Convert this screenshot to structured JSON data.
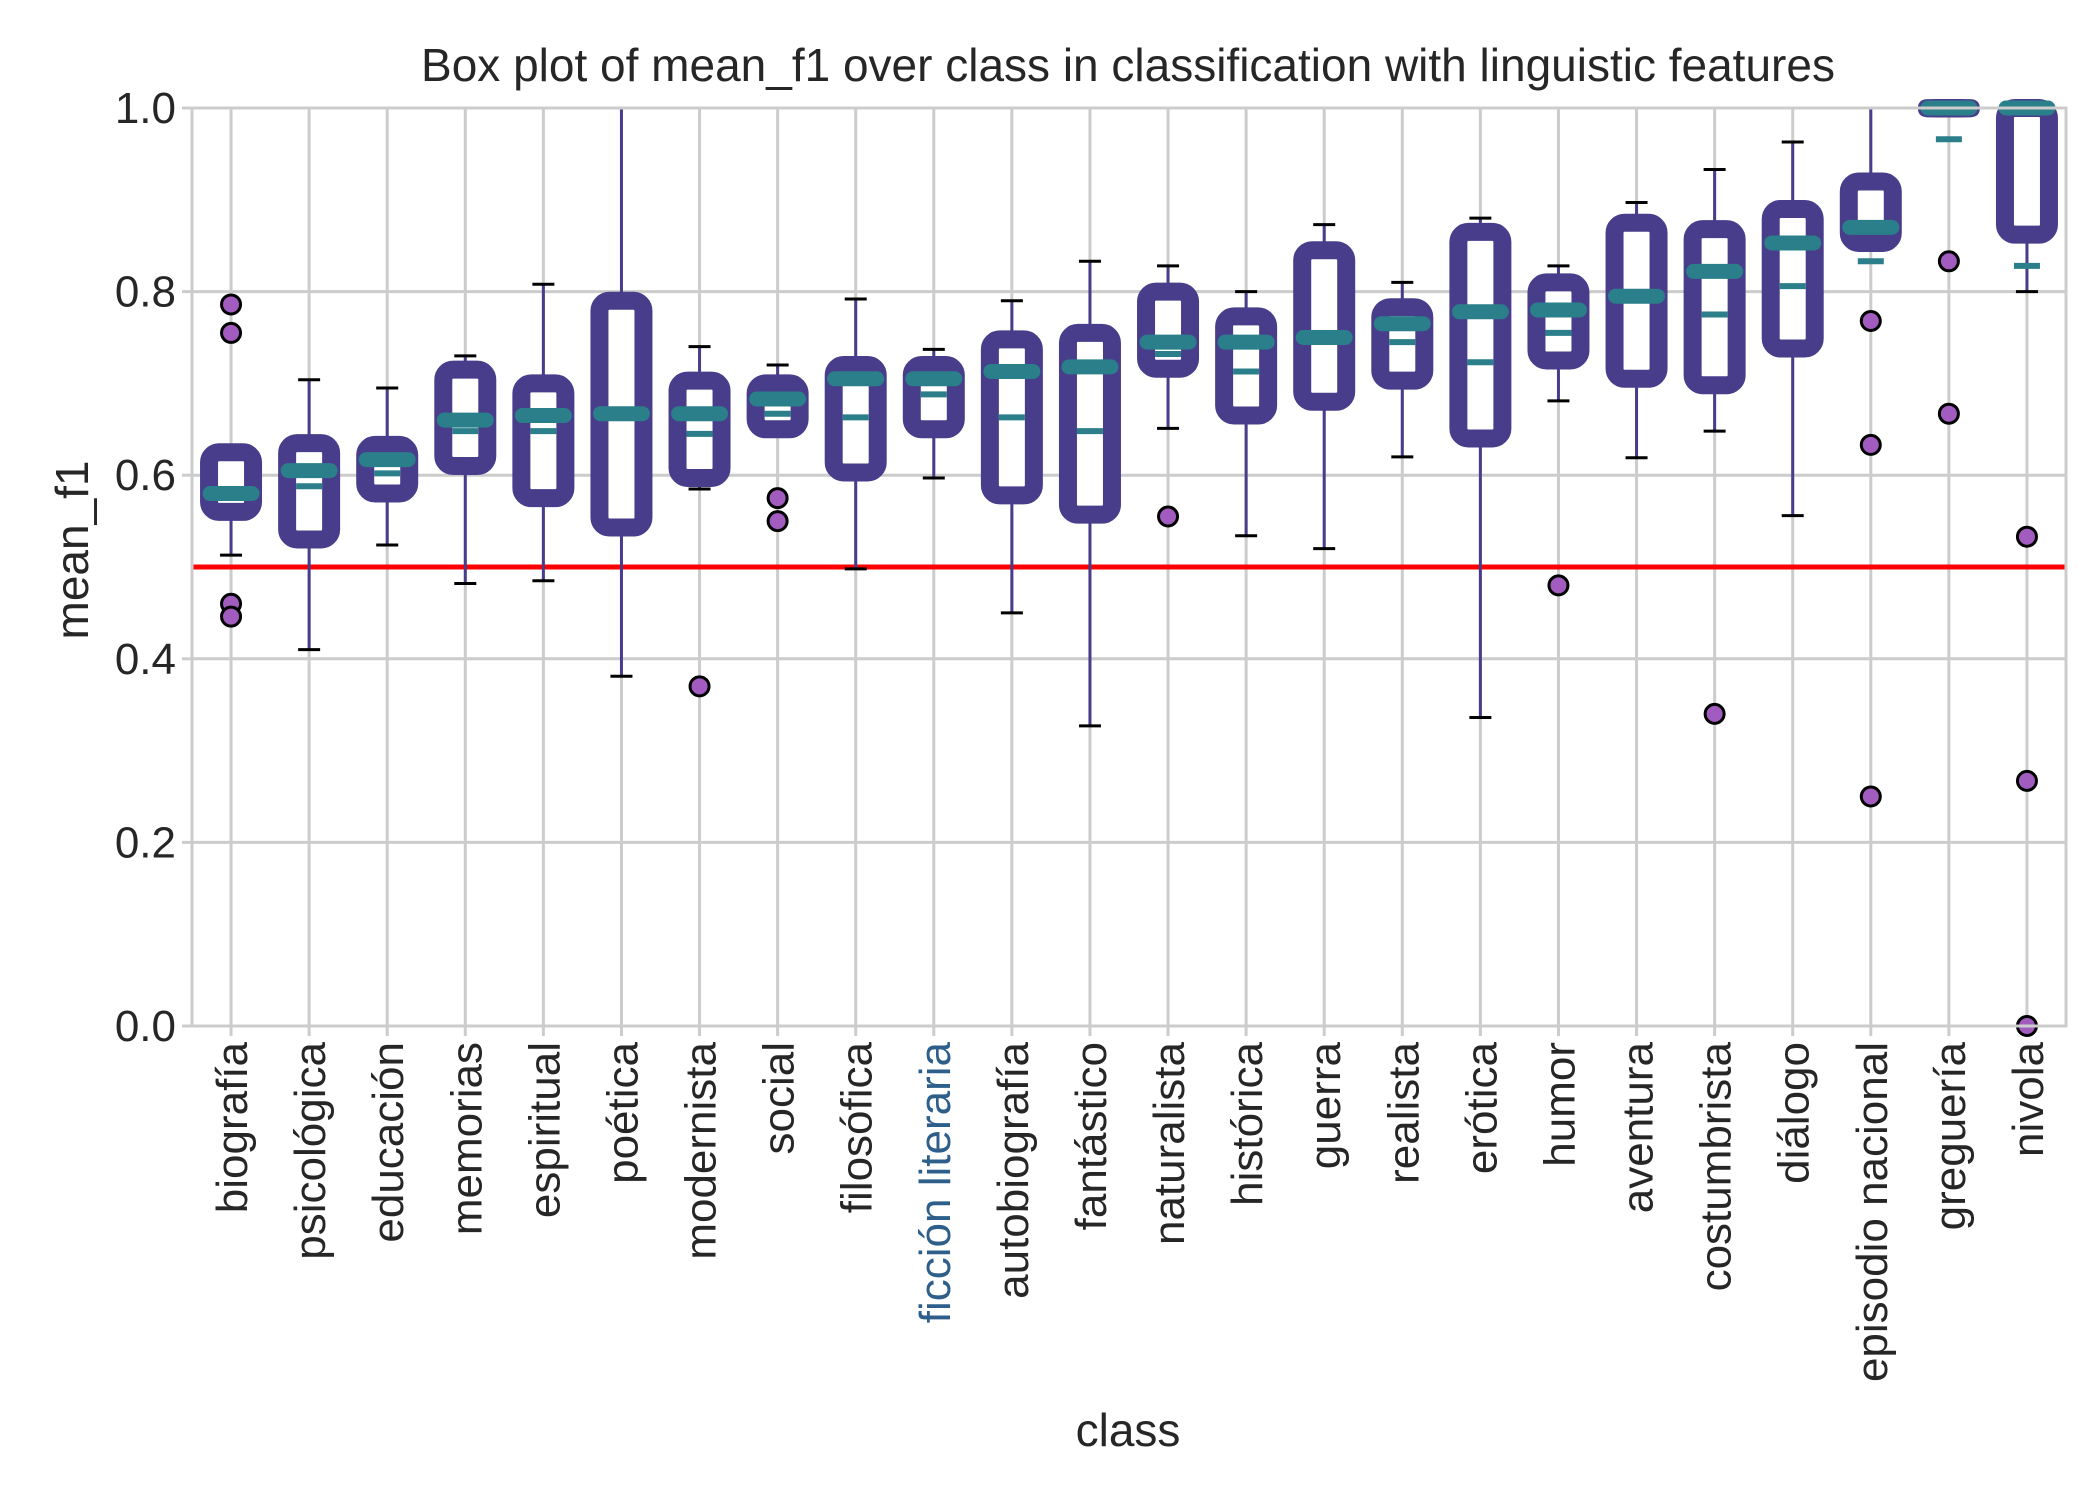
{
  "chart_data": {
    "type": "box",
    "title": "Box plot of mean_f1 over class in classification with linguistic features",
    "xlabel": "class",
    "ylabel": "mean_f1",
    "ylim": [
      0.0,
      1.0
    ],
    "yticks": [
      "0.0",
      "0.2",
      "0.4",
      "0.6",
      "0.8",
      "1.0"
    ],
    "grid": true,
    "reference_line": {
      "y": 0.5,
      "color": "#ff0000"
    },
    "colors": {
      "box": "#483d8b",
      "median": "#2a7f8a",
      "mean": "#2a7f8a",
      "whisker": "#483d8b",
      "cap": "#000000",
      "flier_face": "#a25bbf",
      "flier_edge": "#000000",
      "highlight_label": "#2e5f8a",
      "grid": "#cccccc"
    },
    "highlighted_category": "ficción literaria",
    "categories": [
      "biografía",
      "psicológica",
      "educación",
      "memorias",
      "espiritual",
      "poética",
      "modernista",
      "social",
      "filosófica",
      "ficción literaria",
      "autobiografía",
      "fantástico",
      "naturalista",
      "histórica",
      "guerra",
      "realista",
      "erótica",
      "humor",
      "aventura",
      "costumbrista",
      "diálogo",
      "episodio nacional",
      "greguería",
      "nivola"
    ],
    "boxes": [
      {
        "q1": 0.56,
        "median": 0.58,
        "q3": 0.625,
        "wlo": 0.513,
        "whi": 0.63,
        "mean": 0.585,
        "fliers": [
          0.786,
          0.755,
          0.46,
          0.446
        ]
      },
      {
        "q1": 0.53,
        "median": 0.605,
        "q3": 0.635,
        "wlo": 0.41,
        "whi": 0.704,
        "mean": 0.588,
        "fliers": []
      },
      {
        "q1": 0.58,
        "median": 0.617,
        "q3": 0.633,
        "wlo": 0.524,
        "whi": 0.695,
        "mean": 0.602,
        "fliers": []
      },
      {
        "q1": 0.61,
        "median": 0.66,
        "q3": 0.715,
        "wlo": 0.482,
        "whi": 0.73,
        "mean": 0.648,
        "fliers": []
      },
      {
        "q1": 0.575,
        "median": 0.665,
        "q3": 0.7,
        "wlo": 0.485,
        "whi": 0.808,
        "mean": 0.648,
        "fliers": []
      },
      {
        "q1": 0.543,
        "median": 0.667,
        "q3": 0.79,
        "wlo": 0.381,
        "whi": 1.0,
        "mean": 0.667,
        "fliers": []
      },
      {
        "q1": 0.597,
        "median": 0.667,
        "q3": 0.703,
        "wlo": 0.585,
        "whi": 0.74,
        "mean": 0.645,
        "fliers": [
          0.37
        ]
      },
      {
        "q1": 0.65,
        "median": 0.683,
        "q3": 0.7,
        "wlo": 0.648,
        "whi": 0.72,
        "mean": 0.667,
        "fliers": [
          0.575,
          0.55
        ]
      },
      {
        "q1": 0.603,
        "median": 0.705,
        "q3": 0.72,
        "wlo": 0.498,
        "whi": 0.792,
        "mean": 0.663,
        "fliers": []
      },
      {
        "q1": 0.65,
        "median": 0.705,
        "q3": 0.72,
        "wlo": 0.597,
        "whi": 0.737,
        "mean": 0.688,
        "fliers": []
      },
      {
        "q1": 0.578,
        "median": 0.713,
        "q3": 0.748,
        "wlo": 0.45,
        "whi": 0.79,
        "mean": 0.663,
        "fliers": []
      },
      {
        "q1": 0.557,
        "median": 0.718,
        "q3": 0.755,
        "wlo": 0.327,
        "whi": 0.833,
        "mean": 0.648,
        "fliers": []
      },
      {
        "q1": 0.716,
        "median": 0.745,
        "q3": 0.8,
        "wlo": 0.651,
        "whi": 0.828,
        "mean": 0.732,
        "fliers": [
          0.555
        ]
      },
      {
        "q1": 0.665,
        "median": 0.745,
        "q3": 0.773,
        "wlo": 0.534,
        "whi": 0.8,
        "mean": 0.713,
        "fliers": []
      },
      {
        "q1": 0.68,
        "median": 0.75,
        "q3": 0.845,
        "wlo": 0.52,
        "whi": 0.873,
        "mean": 0.75,
        "fliers": []
      },
      {
        "q1": 0.703,
        "median": 0.765,
        "q3": 0.783,
        "wlo": 0.62,
        "whi": 0.81,
        "mean": 0.745,
        "fliers": []
      },
      {
        "q1": 0.64,
        "median": 0.778,
        "q3": 0.865,
        "wlo": 0.336,
        "whi": 0.88,
        "mean": 0.723,
        "fliers": []
      },
      {
        "q1": 0.725,
        "median": 0.78,
        "q3": 0.81,
        "wlo": 0.681,
        "whi": 0.828,
        "mean": 0.755,
        "fliers": [
          0.48
        ]
      },
      {
        "q1": 0.705,
        "median": 0.795,
        "q3": 0.875,
        "wlo": 0.619,
        "whi": 0.897,
        "mean": 0.797,
        "fliers": []
      },
      {
        "q1": 0.698,
        "median": 0.822,
        "q3": 0.868,
        "wlo": 0.648,
        "whi": 0.933,
        "mean": 0.775,
        "fliers": [
          0.34
        ]
      },
      {
        "q1": 0.738,
        "median": 0.853,
        "q3": 0.89,
        "wlo": 0.556,
        "whi": 0.963,
        "mean": 0.806,
        "fliers": []
      },
      {
        "q1": 0.853,
        "median": 0.87,
        "q3": 0.92,
        "wlo": 0.853,
        "whi": 1.0,
        "mean": 0.833,
        "fliers": [
          0.768,
          0.633,
          0.25
        ]
      },
      {
        "q1": 1.0,
        "median": 1.0,
        "q3": 1.0,
        "wlo": 1.0,
        "whi": 1.0,
        "mean": 0.966,
        "fliers": [
          0.833,
          0.667
        ]
      },
      {
        "q1": 0.862,
        "median": 1.0,
        "q3": 1.0,
        "wlo": 0.8,
        "whi": 1.0,
        "mean": 0.828,
        "fliers": [
          0.533,
          0.267,
          0.0
        ]
      }
    ]
  }
}
